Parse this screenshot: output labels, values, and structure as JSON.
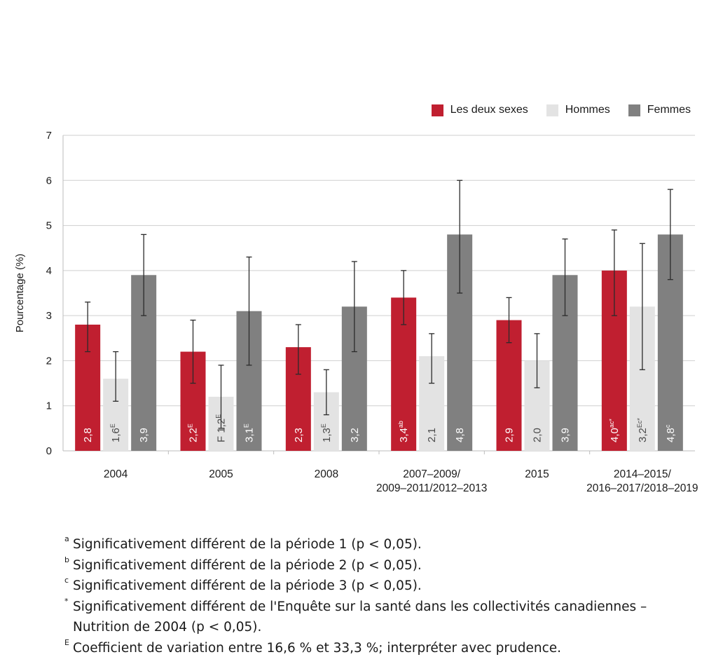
{
  "chart_data": {
    "type": "bar",
    "ylabel": "Pourcentage (%)",
    "xlabel": "",
    "title": "",
    "ylim": [
      0,
      7
    ],
    "yticks": [
      0,
      1,
      2,
      3,
      4,
      5,
      6,
      7
    ],
    "grid": true,
    "legend_position": "top-right",
    "categories": [
      [
        "2004"
      ],
      [
        "2005"
      ],
      [
        "2008"
      ],
      [
        "2007–2009/",
        "2009–2011/2012–2013"
      ],
      [
        "2015"
      ],
      [
        "2014–2015/",
        "2016–2017/2018–2019"
      ]
    ],
    "series": [
      {
        "name": "Les deux sexes",
        "color": "#c01f30",
        "values": [
          2.8,
          2.2,
          2.3,
          3.4,
          2.9,
          4.0
        ],
        "error_low": [
          2.2,
          1.5,
          1.7,
          2.8,
          2.4,
          3.0
        ],
        "error_high": [
          3.3,
          2.9,
          2.8,
          4.0,
          3.4,
          4.9
        ],
        "labels": [
          "2,8",
          "2,2",
          "2,3",
          "3,4",
          "2,9",
          "4,0"
        ],
        "label_marks": [
          "",
          "E",
          "",
          "ab",
          "",
          "ac*"
        ],
        "label_prefix": [
          "",
          "",
          "",
          "",
          "",
          ""
        ]
      },
      {
        "name": "Hommes",
        "color": "#e3e3e3",
        "values": [
          1.6,
          1.2,
          1.3,
          2.1,
          2.0,
          3.2
        ],
        "error_low": [
          1.1,
          0.5,
          0.8,
          1.5,
          1.4,
          1.8
        ],
        "error_high": [
          2.2,
          1.9,
          1.8,
          2.6,
          2.6,
          4.6
        ],
        "labels": [
          "1,6",
          "1,2",
          "1,3",
          "2,1",
          "2,0",
          "3,2"
        ],
        "label_marks": [
          "E",
          "E",
          "E",
          "",
          "",
          "Ec*"
        ],
        "label_prefix": [
          "",
          "F",
          "",
          "",
          "",
          ""
        ]
      },
      {
        "name": "Femmes",
        "color": "#808080",
        "values": [
          3.9,
          3.1,
          3.2,
          4.8,
          3.9,
          4.8
        ],
        "error_low": [
          3.0,
          1.9,
          2.2,
          3.5,
          3.0,
          3.8
        ],
        "error_high": [
          4.8,
          4.3,
          4.2,
          6.0,
          4.7,
          5.8
        ],
        "labels": [
          "3,9",
          "3,1",
          "3,2",
          "4,8",
          "3,9",
          "4,8"
        ],
        "label_marks": [
          "",
          "E",
          "",
          "",
          "",
          "c"
        ],
        "label_prefix": [
          "",
          "",
          "",
          "",
          "",
          ""
        ]
      }
    ]
  },
  "legend": [
    {
      "label": "Les deux sexes",
      "color": "#c01f30"
    },
    {
      "label": "Hommes",
      "color": "#e3e3e3"
    },
    {
      "label": "Femmes",
      "color": "#808080"
    }
  ],
  "notes": [
    {
      "mark": "a",
      "text": "Significativement différent de la période 1 (p < 0,05)."
    },
    {
      "mark": "b",
      "text": "Significativement différent de la période 2 (p < 0,05)."
    },
    {
      "mark": "c",
      "text": "Significativement différent de la période 3 (p < 0,05)."
    },
    {
      "mark": "*",
      "text": "Significativement différent de l'Enquête sur la santé dans les collectivités canadiennes – Nutrition de 2004 (p < 0,05)."
    },
    {
      "mark": "E",
      "text": "Coefficient de variation entre 16,6 % et 33,3 %; interpréter avec prudence."
    }
  ]
}
